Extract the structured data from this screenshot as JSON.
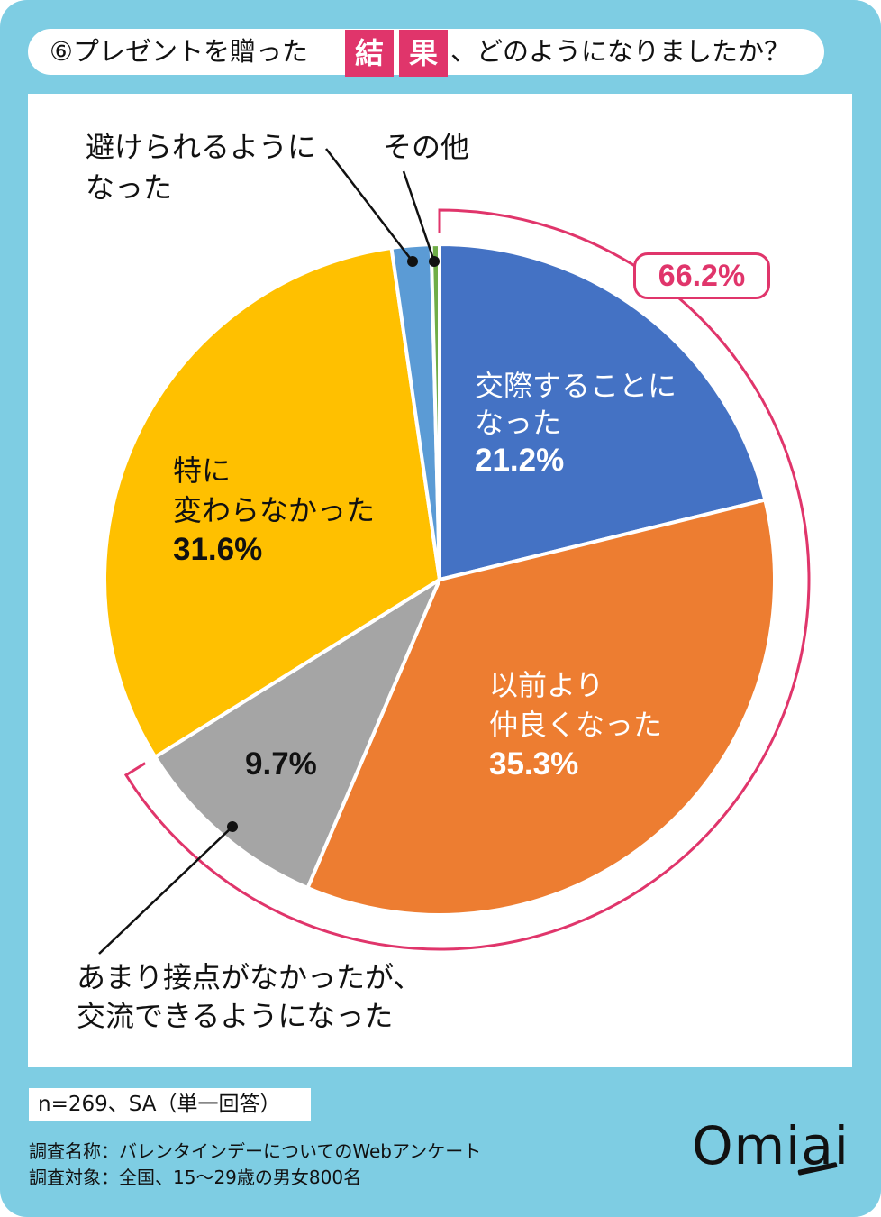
{
  "title": {
    "number": "⑥",
    "prefix": "プレゼントを贈った",
    "highlight": [
      "結",
      "果"
    ],
    "suffix": "、どのようになりましたか？"
  },
  "chart_data": {
    "type": "pie",
    "title": "⑥プレゼントを贈った結果、どのようになりましたか？",
    "categories": [
      "交際することになった",
      "以前より仲良くなった",
      "あまり接点がなかったが、交流できるようになった",
      "特に変わらなかった",
      "避けられるようになった",
      "その他"
    ],
    "values": [
      21.2,
      35.3,
      9.7,
      31.6,
      1.9,
      0.4
    ],
    "unit": "%",
    "start_angle": "12 o'clock, clockwise",
    "colors": [
      "#4472c4",
      "#ed7d31",
      "#a5a5a5",
      "#ffc000",
      "#5b9bd5",
      "#70ad47"
    ],
    "bracket": {
      "covers": [
        0,
        1,
        2
      ],
      "label": "66.2%"
    },
    "legend": "none (direct labels)"
  },
  "labels": {
    "blue": {
      "line1": "交際することに",
      "line2": "なった",
      "pct": "21.2%"
    },
    "orange": {
      "line1": "以前より",
      "line2": "仲良くなった",
      "pct": "35.3%"
    },
    "gray": {
      "pct": "9.7%",
      "line1": "あまり接点がなかったが、",
      "line2": "交流できるようになった"
    },
    "yellow": {
      "line1": "特に",
      "line2": "変わらなかった",
      "pct": "31.6%"
    },
    "lightblue": {
      "line1": "避けられるように",
      "line2": "なった"
    },
    "green": {
      "line1": "その他"
    }
  },
  "bracket_label": "66.2%",
  "footer": {
    "sample": "n=269、SA（単一回答）",
    "survey_name": "調査名称：バレンタインデーについてのWebアンケート",
    "survey_target": "調査対象：全国、15～29歳の男女800名"
  },
  "logo": "Omiai"
}
